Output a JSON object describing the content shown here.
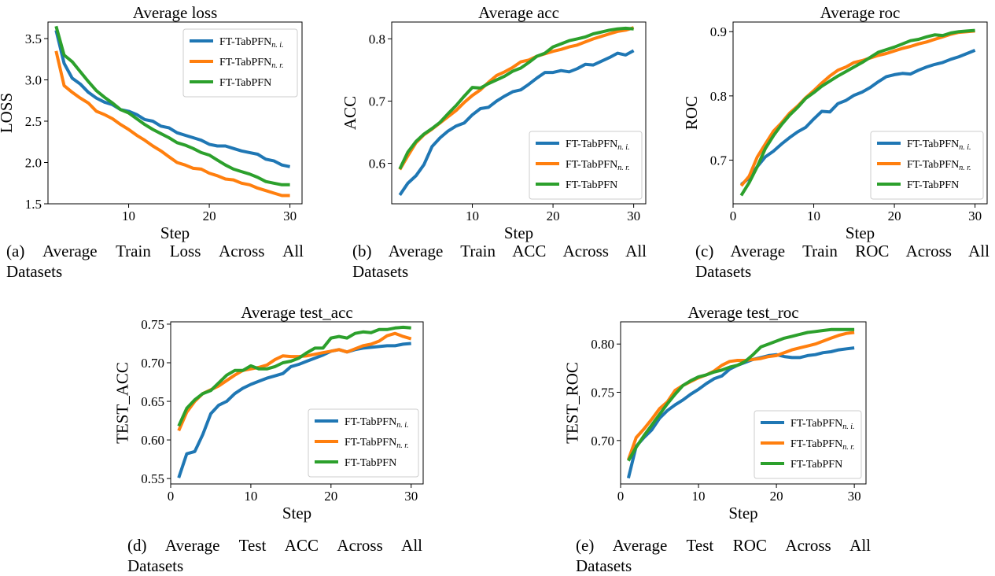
{
  "legend_labels": [
    {
      "base": "FT-TabPFN",
      "sub": "n. i."
    },
    {
      "base": "FT-TabPFN",
      "sub": "n. r."
    },
    {
      "base": "FT-TabPFN",
      "sub": ""
    }
  ],
  "colors": {
    "blue": "#1f77b4",
    "orange": "#ff7f0e",
    "green": "#2ca02c"
  },
  "captions": {
    "a": {
      "line1": "(a) Average Train Loss Across All",
      "line2": "Datasets"
    },
    "b": {
      "line1": "(b) Average Train ACC Across All",
      "line2": "Datasets"
    },
    "c": {
      "line1": "(c) Average Train ROC Across All",
      "line2": "Datasets"
    },
    "d": {
      "line1": "(d) Average Test ACC Across All",
      "line2": "Datasets"
    },
    "e": {
      "line1": "(e) Average Test ROC Across All",
      "line2": "Datasets"
    }
  },
  "chart_data": [
    {
      "type": "line",
      "title": "Average loss",
      "xlabel": "Step",
      "ylabel": "LOSS",
      "xlim": [
        0,
        31.5
      ],
      "ylim": [
        1.5,
        3.7
      ],
      "xticks": [
        "10",
        "20",
        "30"
      ],
      "yticks": [
        "1.5",
        "2.0",
        "2.5",
        "3.0",
        "3.5"
      ],
      "legend_position": "top-right",
      "x": [
        1,
        2,
        3,
        4,
        5,
        6,
        7,
        8,
        9,
        10,
        11,
        12,
        13,
        14,
        15,
        16,
        17,
        18,
        19,
        20,
        21,
        22,
        23,
        24,
        25,
        26,
        27,
        28,
        29,
        30
      ],
      "series": [
        {
          "name": "FT-TabPFNn. i.",
          "color_key": "blue",
          "values": [
            3.6,
            3.2,
            3.02,
            2.95,
            2.85,
            2.78,
            2.73,
            2.7,
            2.64,
            2.62,
            2.58,
            2.52,
            2.5,
            2.44,
            2.42,
            2.36,
            2.33,
            2.3,
            2.27,
            2.22,
            2.2,
            2.2,
            2.17,
            2.14,
            2.12,
            2.1,
            2.04,
            2.02,
            1.97,
            1.95
          ]
        },
        {
          "name": "FT-TabPFNn. r.",
          "color_key": "orange",
          "values": [
            3.35,
            2.93,
            2.85,
            2.78,
            2.72,
            2.62,
            2.58,
            2.53,
            2.46,
            2.4,
            2.33,
            2.27,
            2.2,
            2.14,
            2.07,
            2.0,
            1.97,
            1.93,
            1.92,
            1.87,
            1.84,
            1.8,
            1.79,
            1.75,
            1.73,
            1.69,
            1.66,
            1.63,
            1.6,
            1.6
          ]
        },
        {
          "name": "FT-TabPFN",
          "color_key": "green",
          "values": [
            3.65,
            3.3,
            3.22,
            3.1,
            2.98,
            2.87,
            2.79,
            2.72,
            2.64,
            2.6,
            2.53,
            2.46,
            2.4,
            2.35,
            2.3,
            2.24,
            2.21,
            2.17,
            2.12,
            2.09,
            2.03,
            1.97,
            1.92,
            1.89,
            1.86,
            1.82,
            1.77,
            1.75,
            1.73,
            1.73
          ]
        }
      ]
    },
    {
      "type": "line",
      "title": "Average acc",
      "xlabel": "Step",
      "ylabel": "ACC",
      "xlim": [
        0,
        31.5
      ],
      "ylim": [
        0.535,
        0.827
      ],
      "xticks": [
        "10",
        "20",
        "30"
      ],
      "yticks": [
        "0.6",
        "0.7",
        "0.8"
      ],
      "legend_position": "bottom-right",
      "x": [
        1,
        2,
        3,
        4,
        5,
        6,
        7,
        8,
        9,
        10,
        11,
        12,
        13,
        14,
        15,
        16,
        17,
        18,
        19,
        20,
        21,
        22,
        23,
        24,
        25,
        26,
        27,
        28,
        29,
        30
      ],
      "series": [
        {
          "name": "FT-TabPFNn. i.",
          "color_key": "blue",
          "values": [
            0.549,
            0.568,
            0.58,
            0.598,
            0.627,
            0.641,
            0.652,
            0.66,
            0.665,
            0.678,
            0.688,
            0.69,
            0.7,
            0.708,
            0.715,
            0.718,
            0.727,
            0.737,
            0.746,
            0.746,
            0.749,
            0.747,
            0.752,
            0.759,
            0.758,
            0.764,
            0.77,
            0.777,
            0.774,
            0.781
          ]
        },
        {
          "name": "FT-TabPFNn. r.",
          "color_key": "orange",
          "values": [
            0.59,
            0.612,
            0.633,
            0.646,
            0.655,
            0.665,
            0.675,
            0.685,
            0.698,
            0.709,
            0.718,
            0.73,
            0.741,
            0.747,
            0.754,
            0.763,
            0.766,
            0.772,
            0.776,
            0.78,
            0.783,
            0.787,
            0.79,
            0.795,
            0.8,
            0.804,
            0.808,
            0.812,
            0.814,
            0.818
          ]
        },
        {
          "name": "FT-TabPFN",
          "color_key": "green",
          "values": [
            0.591,
            0.618,
            0.635,
            0.647,
            0.656,
            0.666,
            0.68,
            0.693,
            0.708,
            0.722,
            0.721,
            0.728,
            0.734,
            0.74,
            0.748,
            0.753,
            0.762,
            0.772,
            0.777,
            0.787,
            0.792,
            0.797,
            0.8,
            0.803,
            0.808,
            0.811,
            0.814,
            0.816,
            0.817,
            0.816
          ]
        }
      ]
    },
    {
      "type": "line",
      "title": "Average roc",
      "xlabel": "Step",
      "ylabel": "ROC",
      "xlim": [
        0,
        31.5
      ],
      "ylim": [
        0.632,
        0.915
      ],
      "xticks": [
        "0",
        "10",
        "20",
        "30"
      ],
      "yticks": [
        "0.7",
        "0.8",
        "0.9"
      ],
      "legend_position": "bottom-right",
      "x": [
        1,
        2,
        3,
        4,
        5,
        6,
        7,
        8,
        9,
        10,
        11,
        12,
        13,
        14,
        15,
        16,
        17,
        18,
        19,
        20,
        21,
        22,
        23,
        24,
        25,
        26,
        27,
        28,
        29,
        30
      ],
      "series": [
        {
          "name": "FT-TabPFNn. i.",
          "color_key": "blue",
          "values": [
            0.662,
            0.672,
            0.69,
            0.705,
            0.714,
            0.725,
            0.735,
            0.744,
            0.751,
            0.764,
            0.776,
            0.775,
            0.788,
            0.793,
            0.801,
            0.806,
            0.813,
            0.822,
            0.83,
            0.833,
            0.835,
            0.834,
            0.84,
            0.845,
            0.849,
            0.852,
            0.857,
            0.861,
            0.866,
            0.871
          ]
        },
        {
          "name": "FT-TabPFNn. r.",
          "color_key": "orange",
          "values": [
            0.66,
            0.675,
            0.705,
            0.725,
            0.745,
            0.758,
            0.773,
            0.784,
            0.797,
            0.808,
            0.82,
            0.831,
            0.84,
            0.845,
            0.852,
            0.855,
            0.859,
            0.863,
            0.866,
            0.87,
            0.874,
            0.877,
            0.881,
            0.884,
            0.888,
            0.892,
            0.896,
            0.899,
            0.9,
            0.901
          ]
        },
        {
          "name": "FT-TabPFN",
          "color_key": "green",
          "values": [
            0.645,
            0.665,
            0.69,
            0.718,
            0.738,
            0.755,
            0.77,
            0.782,
            0.796,
            0.805,
            0.815,
            0.823,
            0.831,
            0.838,
            0.845,
            0.852,
            0.86,
            0.868,
            0.872,
            0.876,
            0.881,
            0.886,
            0.888,
            0.892,
            0.895,
            0.894,
            0.898,
            0.9,
            0.901,
            0.902
          ]
        }
      ]
    },
    {
      "type": "line",
      "title": "Average test_acc",
      "xlabel": "Step",
      "ylabel": "TEST_ACC",
      "xlim": [
        0,
        31.5
      ],
      "ylim": [
        0.543,
        0.753
      ],
      "xticks": [
        "0",
        "10",
        "20",
        "30"
      ],
      "yticks": [
        "0.55",
        "0.60",
        "0.65",
        "0.70",
        "0.75"
      ],
      "legend_position": "bottom-right",
      "x": [
        1,
        2,
        3,
        4,
        5,
        6,
        7,
        8,
        9,
        10,
        11,
        12,
        13,
        14,
        15,
        16,
        17,
        18,
        19,
        20,
        21,
        22,
        23,
        24,
        25,
        26,
        27,
        28,
        29,
        30
      ],
      "series": [
        {
          "name": "FT-TabPFNn. i.",
          "color_key": "blue",
          "values": [
            0.551,
            0.582,
            0.585,
            0.607,
            0.634,
            0.645,
            0.65,
            0.66,
            0.667,
            0.672,
            0.676,
            0.68,
            0.683,
            0.686,
            0.695,
            0.698,
            0.702,
            0.706,
            0.71,
            0.715,
            0.717,
            0.714,
            0.717,
            0.719,
            0.72,
            0.721,
            0.722,
            0.722,
            0.724,
            0.725
          ]
        },
        {
          "name": "FT-TabPFNn. r.",
          "color_key": "orange",
          "values": [
            0.612,
            0.636,
            0.65,
            0.66,
            0.665,
            0.67,
            0.677,
            0.684,
            0.69,
            0.692,
            0.694,
            0.697,
            0.704,
            0.709,
            0.708,
            0.708,
            0.709,
            0.711,
            0.713,
            0.715,
            0.717,
            0.714,
            0.718,
            0.722,
            0.724,
            0.728,
            0.735,
            0.738,
            0.734,
            0.731
          ]
        },
        {
          "name": "FT-TabPFN",
          "color_key": "green",
          "values": [
            0.618,
            0.641,
            0.652,
            0.66,
            0.664,
            0.674,
            0.684,
            0.69,
            0.69,
            0.696,
            0.692,
            0.692,
            0.695,
            0.7,
            0.702,
            0.706,
            0.713,
            0.719,
            0.719,
            0.732,
            0.734,
            0.732,
            0.738,
            0.74,
            0.739,
            0.743,
            0.743,
            0.745,
            0.746,
            0.745
          ]
        }
      ]
    },
    {
      "type": "line",
      "title": "Average test_roc",
      "xlabel": "Step",
      "ylabel": "TEST_ROC",
      "xlim": [
        0,
        31.5
      ],
      "ylim": [
        0.655,
        0.823
      ],
      "xticks": [
        "0",
        "10",
        "20",
        "30"
      ],
      "yticks": [
        "0.70",
        "0.75",
        "0.80"
      ],
      "legend_position": "bottom-right",
      "x": [
        1,
        2,
        3,
        4,
        5,
        6,
        7,
        8,
        9,
        10,
        11,
        12,
        13,
        14,
        15,
        16,
        17,
        18,
        19,
        20,
        21,
        22,
        23,
        24,
        25,
        26,
        27,
        28,
        29,
        30
      ],
      "series": [
        {
          "name": "FT-TabPFNn. i.",
          "color_key": "blue",
          "values": [
            0.661,
            0.694,
            0.703,
            0.711,
            0.723,
            0.731,
            0.737,
            0.742,
            0.748,
            0.753,
            0.759,
            0.764,
            0.767,
            0.774,
            0.778,
            0.781,
            0.784,
            0.786,
            0.788,
            0.789,
            0.787,
            0.786,
            0.786,
            0.788,
            0.789,
            0.791,
            0.792,
            0.794,
            0.795,
            0.796
          ]
        },
        {
          "name": "FT-TabPFNn. r.",
          "color_key": "orange",
          "values": [
            0.68,
            0.703,
            0.712,
            0.722,
            0.733,
            0.74,
            0.752,
            0.757,
            0.761,
            0.765,
            0.768,
            0.772,
            0.778,
            0.782,
            0.783,
            0.783,
            0.784,
            0.785,
            0.787,
            0.788,
            0.791,
            0.794,
            0.796,
            0.798,
            0.8,
            0.803,
            0.806,
            0.809,
            0.811,
            0.812
          ]
        },
        {
          "name": "FT-TabPFN",
          "color_key": "green",
          "values": [
            0.679,
            0.693,
            0.705,
            0.716,
            0.727,
            0.738,
            0.748,
            0.757,
            0.762,
            0.766,
            0.768,
            0.771,
            0.773,
            0.776,
            0.778,
            0.782,
            0.789,
            0.797,
            0.8,
            0.803,
            0.806,
            0.808,
            0.81,
            0.812,
            0.813,
            0.814,
            0.815,
            0.815,
            0.815,
            0.815
          ]
        }
      ]
    }
  ]
}
